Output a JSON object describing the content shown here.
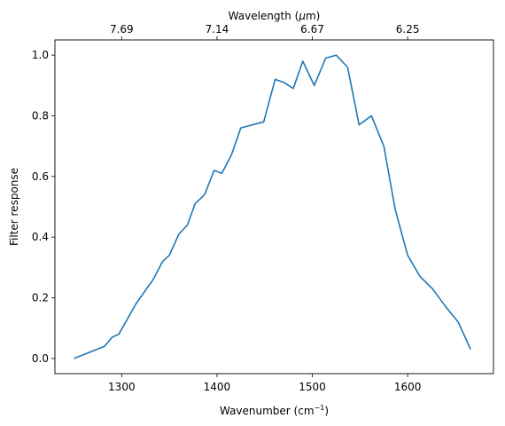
{
  "chart_data": {
    "type": "line",
    "xlabel": "Wavenumber (cm",
    "xlabel_sup": "−1",
    "xlabel_end": ")",
    "ylabel": "Filter response",
    "top_xlabel_pre": "Wavelength (",
    "top_xlabel_mu": "μ",
    "top_xlabel_post": "m)",
    "xlim": [
      1230,
      1690
    ],
    "ylim": [
      -0.05,
      1.05
    ],
    "x_ticks": [
      1300,
      1400,
      1500,
      1600
    ],
    "x_tick_labels": [
      "1300",
      "1400",
      "1500",
      "1600"
    ],
    "y_ticks": [
      0.0,
      0.2,
      0.4,
      0.6,
      0.8,
      1.0
    ],
    "y_tick_labels": [
      "0.0",
      "0.2",
      "0.4",
      "0.6",
      "0.8",
      "1.0"
    ],
    "top_ticks": [
      1300,
      1400,
      1500,
      1600
    ],
    "top_tick_labels": [
      "7.69",
      "7.14",
      "6.67",
      "6.25"
    ],
    "grid": false,
    "line_color": "#1f77b4",
    "series": [
      {
        "x": [
          1250,
          1282,
          1290,
          1297,
          1315,
          1333,
          1343,
          1350,
          1360,
          1369,
          1377,
          1387,
          1397,
          1405,
          1415,
          1425,
          1449,
          1461,
          1470,
          1480,
          1490,
          1502,
          1514,
          1525,
          1537,
          1549,
          1562,
          1575,
          1587,
          1600,
          1613,
          1626,
          1640,
          1653,
          1666
        ],
        "y": [
          0.0,
          0.04,
          0.07,
          0.08,
          0.18,
          0.26,
          0.32,
          0.34,
          0.41,
          0.44,
          0.51,
          0.54,
          0.62,
          0.61,
          0.67,
          0.76,
          0.78,
          0.92,
          0.91,
          0.89,
          0.98,
          0.9,
          0.99,
          1.0,
          0.96,
          0.77,
          0.8,
          0.7,
          0.49,
          0.34,
          0.27,
          0.23,
          0.17,
          0.12,
          0.03
        ]
      }
    ]
  }
}
